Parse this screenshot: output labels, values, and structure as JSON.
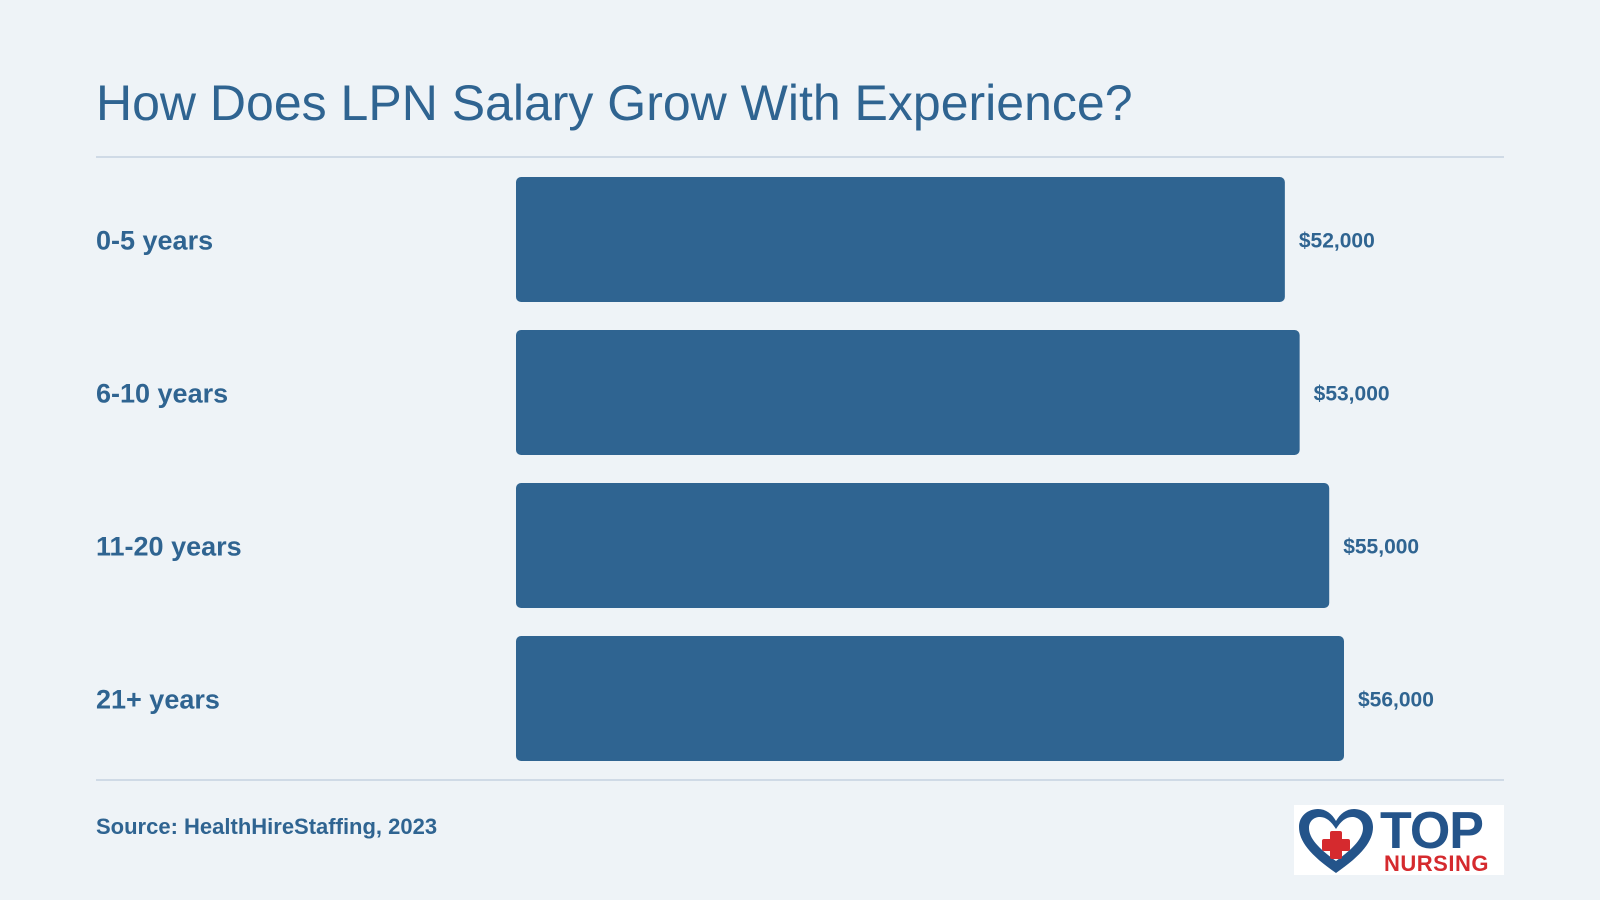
{
  "title": "How Does LPN Salary Grow With Experience?",
  "source": "Source: HealthHireStaffing, 2023",
  "logo": {
    "word_top": "TOP",
    "word_bottom": "NURSING",
    "icon": "heart-cross-icon"
  },
  "colors": {
    "bar": "#2f6491",
    "text": "#2f6491",
    "background": "#eef3f7",
    "logo_red": "#d52a2e",
    "logo_blue": "#24548a"
  },
  "chart_data": {
    "type": "bar",
    "orientation": "horizontal",
    "categories": [
      "0-5 years",
      "6-10 years",
      "11-20 years",
      "21+ years"
    ],
    "values": [
      52000,
      53000,
      55000,
      56000
    ],
    "value_labels": [
      "$52,000",
      "$53,000",
      "$55,000",
      "$56,000"
    ],
    "xlim": [
      0,
      56000
    ],
    "grid": false,
    "legend": "none"
  }
}
